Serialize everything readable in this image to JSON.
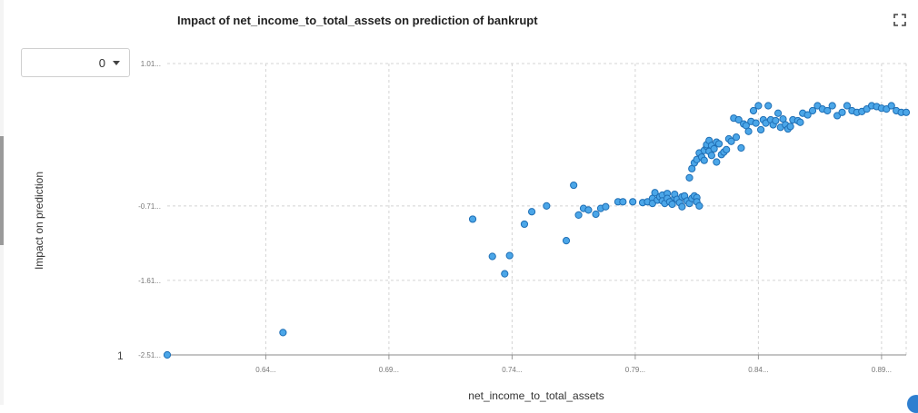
{
  "page": {
    "dropdown_value": "0",
    "corner_label": "1"
  },
  "chart_data": {
    "type": "scatter",
    "title": "Impact of net_income_to_total_assets on prediction of bankrupt",
    "xlabel": "net_income_to_total_assets",
    "ylabel": "Impact on prediction",
    "xlim": [
      0.6,
      0.9
    ],
    "ylim": [
      -2.51,
      1.01
    ],
    "grid": true,
    "x_ticks": [
      {
        "value": 0.64,
        "label": "0.64..."
      },
      {
        "value": 0.69,
        "label": "0.69..."
      },
      {
        "value": 0.74,
        "label": "0.74..."
      },
      {
        "value": 0.79,
        "label": "0.79..."
      },
      {
        "value": 0.84,
        "label": "0.84..."
      },
      {
        "value": 0.89,
        "label": "0.89..."
      }
    ],
    "y_ticks": [
      {
        "value": 1.01,
        "label": "1.01..."
      },
      {
        "value": -0.71,
        "label": "-0.71..."
      },
      {
        "value": -1.61,
        "label": "-1.61..."
      },
      {
        "value": -2.51,
        "label": "-2.51..."
      }
    ],
    "marker_color": "#4ba6e8",
    "marker_edge": "#1f6fb5",
    "points": [
      [
        0.6,
        -2.51
      ],
      [
        0.647,
        -2.24
      ],
      [
        0.724,
        -0.87
      ],
      [
        0.732,
        -1.32
      ],
      [
        0.737,
        -1.53
      ],
      [
        0.739,
        -1.31
      ],
      [
        0.745,
        -0.93
      ],
      [
        0.748,
        -0.78
      ],
      [
        0.754,
        -0.71
      ],
      [
        0.762,
        -1.13
      ],
      [
        0.765,
        -0.46
      ],
      [
        0.767,
        -0.82
      ],
      [
        0.769,
        -0.74
      ],
      [
        0.771,
        -0.76
      ],
      [
        0.774,
        -0.81
      ],
      [
        0.776,
        -0.74
      ],
      [
        0.778,
        -0.72
      ],
      [
        0.783,
        -0.66
      ],
      [
        0.785,
        -0.66
      ],
      [
        0.789,
        -0.66
      ],
      [
        0.793,
        -0.67
      ],
      [
        0.795,
        -0.66
      ],
      [
        0.797,
        -0.62
      ],
      [
        0.797,
        -0.68
      ],
      [
        0.798,
        -0.55
      ],
      [
        0.799,
        -0.64
      ],
      [
        0.8,
        -0.6
      ],
      [
        0.801,
        -0.58
      ],
      [
        0.801,
        -0.65
      ],
      [
        0.802,
        -0.68
      ],
      [
        0.803,
        -0.56
      ],
      [
        0.803,
        -0.62
      ],
      [
        0.804,
        -0.66
      ],
      [
        0.805,
        -0.69
      ],
      [
        0.806,
        -0.61
      ],
      [
        0.806,
        -0.57
      ],
      [
        0.807,
        -0.63
      ],
      [
        0.808,
        -0.67
      ],
      [
        0.809,
        -0.6
      ],
      [
        0.809,
        -0.72
      ],
      [
        0.81,
        -0.59
      ],
      [
        0.811,
        -0.65
      ],
      [
        0.812,
        -0.68
      ],
      [
        0.813,
        -0.62
      ],
      [
        0.814,
        -0.59
      ],
      [
        0.815,
        -0.61
      ],
      [
        0.815,
        -0.66
      ],
      [
        0.816,
        -0.71
      ],
      [
        0.812,
        -0.37
      ],
      [
        0.813,
        -0.26
      ],
      [
        0.814,
        -0.19
      ],
      [
        0.815,
        -0.15
      ],
      [
        0.816,
        -0.07
      ],
      [
        0.817,
        -0.12
      ],
      [
        0.818,
        -0.16
      ],
      [
        0.818,
        -0.04
      ],
      [
        0.819,
        0.01
      ],
      [
        0.819,
        0.03
      ],
      [
        0.82,
        -0.05
      ],
      [
        0.82,
        0.08
      ],
      [
        0.821,
        -0.1
      ],
      [
        0.821,
        0.02
      ],
      [
        0.822,
        -0.02
      ],
      [
        0.823,
        0.06
      ],
      [
        0.823,
        -0.18
      ],
      [
        0.824,
        0.04
      ],
      [
        0.825,
        -0.09
      ],
      [
        0.826,
        -0.06
      ],
      [
        0.827,
        -0.03
      ],
      [
        0.828,
        0.1
      ],
      [
        0.829,
        0.07
      ],
      [
        0.83,
        0.35
      ],
      [
        0.831,
        0.12
      ],
      [
        0.832,
        0.33
      ],
      [
        0.833,
        -0.01
      ],
      [
        0.834,
        0.28
      ],
      [
        0.835,
        0.26
      ],
      [
        0.836,
        0.19
      ],
      [
        0.837,
        0.31
      ],
      [
        0.838,
        0.44
      ],
      [
        0.839,
        0.29
      ],
      [
        0.84,
        0.5
      ],
      [
        0.841,
        0.21
      ],
      [
        0.842,
        0.33
      ],
      [
        0.843,
        0.29
      ],
      [
        0.844,
        0.5
      ],
      [
        0.845,
        0.33
      ],
      [
        0.846,
        0.27
      ],
      [
        0.847,
        0.32
      ],
      [
        0.848,
        0.41
      ],
      [
        0.849,
        0.24
      ],
      [
        0.85,
        0.34
      ],
      [
        0.851,
        0.27
      ],
      [
        0.852,
        0.22
      ],
      [
        0.853,
        0.25
      ],
      [
        0.854,
        0.33
      ],
      [
        0.856,
        0.32
      ],
      [
        0.857,
        0.3
      ],
      [
        0.858,
        0.41
      ],
      [
        0.86,
        0.39
      ],
      [
        0.862,
        0.44
      ],
      [
        0.864,
        0.5
      ],
      [
        0.866,
        0.46
      ],
      [
        0.868,
        0.44
      ],
      [
        0.87,
        0.5
      ],
      [
        0.872,
        0.38
      ],
      [
        0.874,
        0.42
      ],
      [
        0.876,
        0.5
      ],
      [
        0.878,
        0.44
      ],
      [
        0.88,
        0.42
      ],
      [
        0.882,
        0.43
      ],
      [
        0.884,
        0.46
      ],
      [
        0.886,
        0.5
      ],
      [
        0.888,
        0.49
      ],
      [
        0.89,
        0.47
      ],
      [
        0.892,
        0.46
      ],
      [
        0.894,
        0.5
      ],
      [
        0.896,
        0.44
      ],
      [
        0.898,
        0.42
      ],
      [
        0.9,
        0.42
      ]
    ]
  }
}
